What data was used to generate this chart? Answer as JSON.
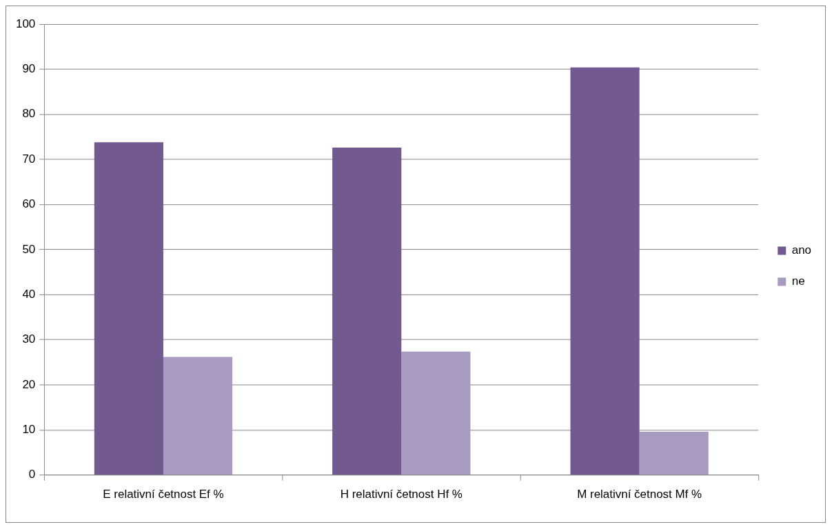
{
  "chart_data": {
    "type": "bar",
    "categories": [
      "E relativní četnost Ef %",
      "H relativní četnost Hf %",
      "M relativní četnost Mf %"
    ],
    "series": [
      {
        "name": "ano",
        "color": "#725a91",
        "values": [
          73.8,
          72.6,
          90.4
        ]
      },
      {
        "name": "ne",
        "color": "#a99bbf",
        "values": [
          26.2,
          27.4,
          9.6
        ]
      }
    ],
    "ylim": [
      0,
      100
    ],
    "yticks": [
      0,
      10,
      20,
      30,
      40,
      50,
      60,
      70,
      80,
      90,
      100
    ],
    "grid": "y",
    "legend": "right"
  }
}
